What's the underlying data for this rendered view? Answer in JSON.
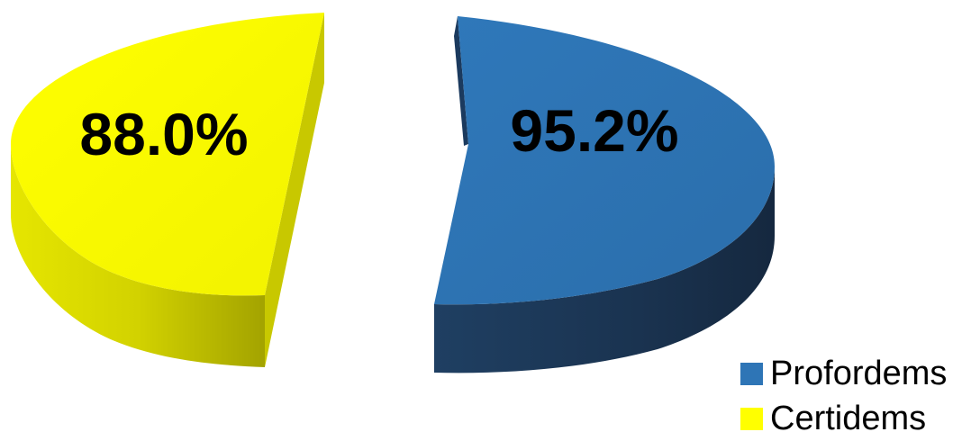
{
  "chart_data": {
    "type": "pie",
    "style": "3d-exploded",
    "slices": [
      {
        "name": "Profordems",
        "value": 95.2,
        "label": "95.2%",
        "color": "#2E75B6"
      },
      {
        "name": "Certidems",
        "value": 88.0,
        "label": "88.0%",
        "color": "#FFFF00"
      }
    ],
    "legend": {
      "placement": "bottom-right",
      "entries": [
        {
          "name": "Profordems",
          "color": "#2E75B6"
        },
        {
          "name": "Certidems",
          "color": "#FFFF00"
        }
      ]
    },
    "title": ""
  }
}
